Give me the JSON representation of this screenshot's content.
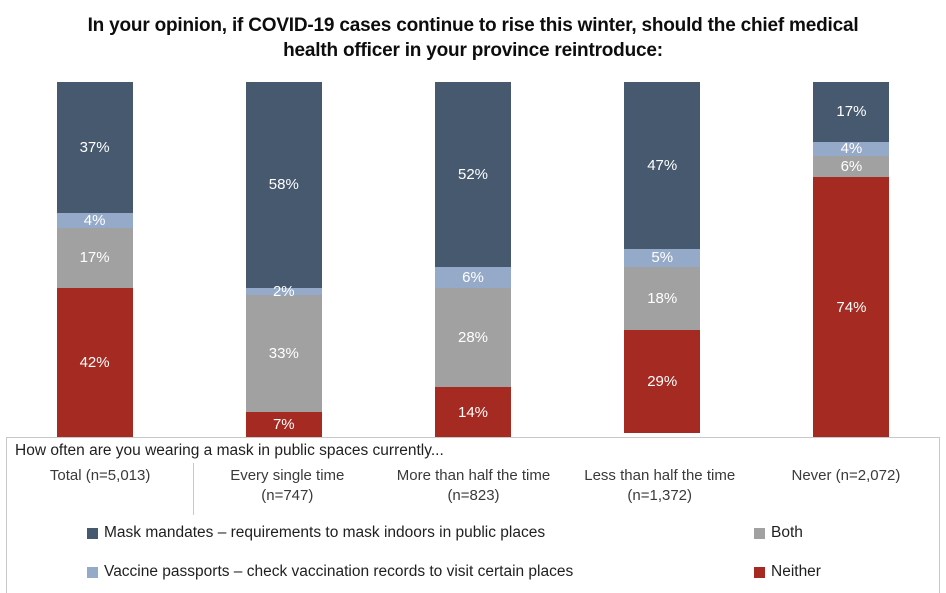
{
  "chart_data": {
    "type": "bar",
    "stacked": true,
    "orientation": "vertical",
    "title": "In your opinion, if COVID-19 cases continue to rise this winter, should the chief medical health officer in your province reintroduce:",
    "xlabel": "How often are you wearing a mask in public spaces currently...",
    "categories": [
      "Total (n=5,013)",
      "Every single time (n=747)",
      "More than half the time (n=823)",
      "Less than half the time (n=1,372)",
      "Never (n=2,072)"
    ],
    "series": [
      {
        "name": "Mask mandates – requirements to mask indoors in public places",
        "color": "#47596f",
        "values": [
          37,
          58,
          52,
          47,
          17
        ]
      },
      {
        "name": "Vaccine passports – check vaccination records to visit certain places",
        "color": "#95aac9",
        "values": [
          4,
          2,
          6,
          5,
          4
        ]
      },
      {
        "name": "Both",
        "color": "#a1a1a1",
        "values": [
          17,
          33,
          28,
          18,
          6
        ]
      },
      {
        "name": "Neither",
        "color": "#a52a21",
        "values": [
          42,
          7,
          14,
          29,
          74
        ]
      }
    ],
    "value_suffix": "%",
    "ylim": [
      0,
      100
    ],
    "stack_order": "top-to-bottom",
    "grid": false,
    "legend_position": "bottom",
    "label_color": "#ffffff"
  }
}
